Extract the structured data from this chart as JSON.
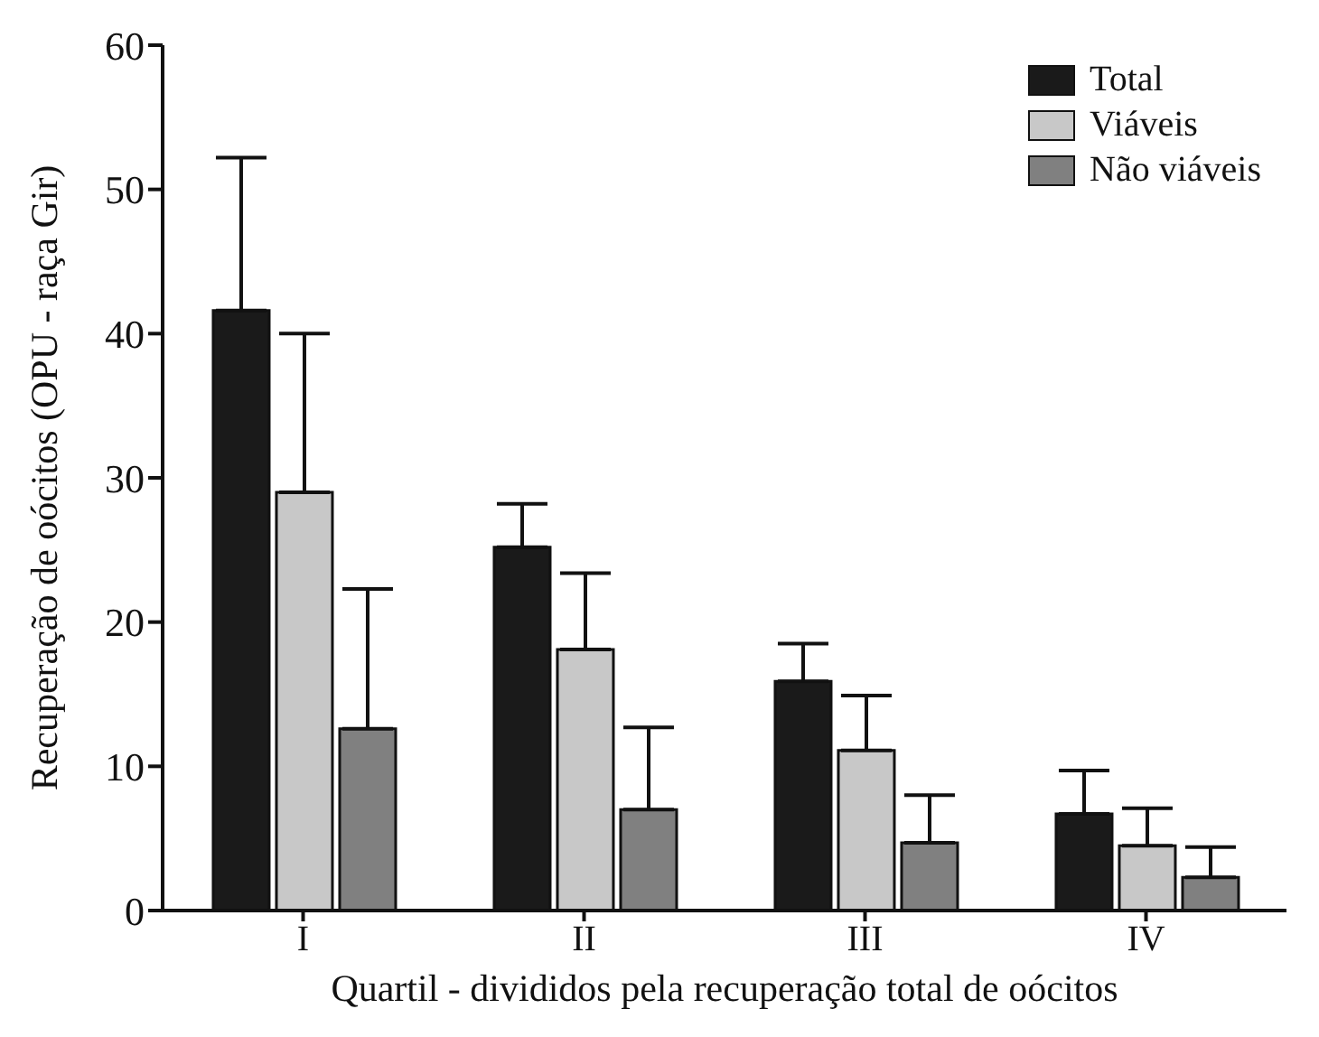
{
  "chart_data": {
    "type": "bar",
    "xlabel": "Quartil - divididos pela recuperação total de oócitos",
    "ylabel": "Recuperação de oócitos (OPU - raça Gir)",
    "categories": [
      "I",
      "II",
      "III",
      "IV"
    ],
    "series": [
      {
        "name": "Total",
        "color": "#1a1a1a",
        "values": [
          41.6,
          25.2,
          15.9,
          6.7
        ],
        "errors": [
          [
            41.6,
            52.2
          ],
          [
            25.2,
            28.2
          ],
          [
            15.9,
            18.5
          ],
          [
            6.7,
            9.7
          ]
        ]
      },
      {
        "name": "Viáveis",
        "color": "#c8c8c8",
        "values": [
          29.0,
          18.1,
          11.1,
          4.5
        ],
        "errors": [
          [
            29.0,
            40.0
          ],
          [
            18.1,
            23.4
          ],
          [
            11.1,
            14.9
          ],
          [
            4.5,
            7.1
          ]
        ]
      },
      {
        "name": "Não viáveis",
        "color": "#808080",
        "values": [
          12.6,
          7.0,
          4.7,
          2.3
        ],
        "errors": [
          [
            12.6,
            22.3
          ],
          [
            7.0,
            12.7
          ],
          [
            4.7,
            8.0
          ],
          [
            2.3,
            4.4
          ]
        ]
      }
    ],
    "ylim": [
      0,
      60
    ],
    "yticks": [
      0,
      10,
      20,
      30,
      40,
      50,
      60
    ],
    "grid": false,
    "legend": "top right"
  }
}
